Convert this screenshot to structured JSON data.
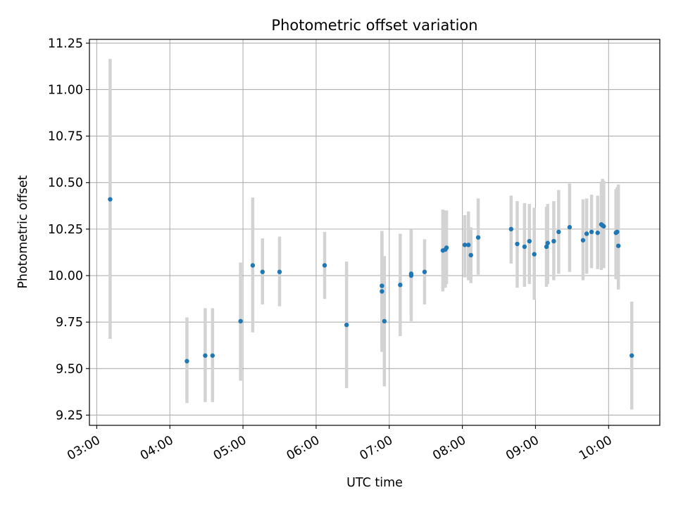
{
  "chart_data": {
    "type": "scatter",
    "title": "Photometric offset variation",
    "xlabel": "UTC time",
    "ylabel": "Photometric offset",
    "xlim": [
      "02:54",
      "10:42"
    ],
    "ylim": [
      9.195,
      11.27
    ],
    "x_ticks": [
      "03:00",
      "04:00",
      "05:00",
      "06:00",
      "07:00",
      "08:00",
      "09:00",
      "10:00"
    ],
    "y_ticks": [
      9.25,
      9.5,
      9.75,
      10.0,
      10.25,
      10.5,
      10.75,
      11.0,
      11.25
    ],
    "y_tick_labels": [
      "9.25",
      "9.50",
      "9.75",
      "10.00",
      "10.25",
      "10.50",
      "10.75",
      "11.00",
      "11.25"
    ],
    "grid": true,
    "colors": {
      "point": "#1f77b4",
      "errorbar": "#d3d3d3",
      "grid": "#b0b0b0",
      "axes": "#000000"
    },
    "series": [
      {
        "x": [
          "03:11",
          "04:14",
          "04:29",
          "04:35",
          "04:58",
          "05:08",
          "05:16",
          "05:30",
          "06:07",
          "06:25",
          "06:54",
          "06:54",
          "06:56",
          "07:09",
          "07:18",
          "07:18",
          "07:29",
          "07:44",
          "07:46",
          "07:47",
          "08:02",
          "08:05",
          "08:07",
          "08:13",
          "08:40",
          "08:45",
          "08:51",
          "08:55",
          "08:59",
          "09:09",
          "09:10",
          "09:15",
          "09:19",
          "09:28",
          "09:39",
          "09:42",
          "09:46",
          "09:51",
          "09:54",
          "09:55",
          "09:56",
          "10:06",
          "10:07",
          "10:08",
          "10:19"
        ],
        "y": [
          10.41,
          9.54,
          9.57,
          9.57,
          9.755,
          10.055,
          10.02,
          10.02,
          10.055,
          9.735,
          9.915,
          9.945,
          9.755,
          9.95,
          10.0,
          10.01,
          10.02,
          10.135,
          10.14,
          10.15,
          10.165,
          10.165,
          10.11,
          10.205,
          10.25,
          10.17,
          10.155,
          10.185,
          10.115,
          10.155,
          10.175,
          10.185,
          10.235,
          10.26,
          10.19,
          10.225,
          10.235,
          10.23,
          10.275,
          10.27,
          10.265,
          10.23,
          10.235,
          10.16,
          9.57
        ],
        "err_low": [
          9.66,
          9.315,
          9.32,
          9.32,
          9.435,
          9.695,
          9.845,
          9.835,
          9.875,
          9.395,
          9.59,
          9.62,
          9.405,
          9.675,
          9.755,
          9.78,
          9.845,
          9.915,
          9.935,
          9.955,
          9.99,
          9.975,
          9.96,
          10.005,
          10.065,
          9.935,
          9.94,
          9.955,
          9.87,
          9.94,
          9.955,
          9.975,
          10.01,
          10.02,
          9.975,
          10.01,
          10.04,
          10.035,
          10.03,
          10.045,
          10.04,
          9.98,
          9.99,
          9.925,
          9.28
        ],
        "err_high": [
          11.165,
          9.775,
          9.825,
          9.825,
          10.07,
          10.42,
          10.2,
          10.21,
          10.235,
          10.075,
          10.24,
          10.22,
          10.105,
          10.225,
          10.25,
          10.245,
          10.195,
          10.355,
          10.35,
          10.35,
          10.325,
          10.345,
          10.26,
          10.415,
          10.43,
          10.4,
          10.39,
          10.385,
          10.365,
          10.37,
          10.385,
          10.4,
          10.46,
          10.495,
          10.41,
          10.415,
          10.435,
          10.43,
          10.505,
          10.52,
          10.51,
          10.465,
          10.475,
          10.49,
          9.86
        ]
      }
    ]
  }
}
